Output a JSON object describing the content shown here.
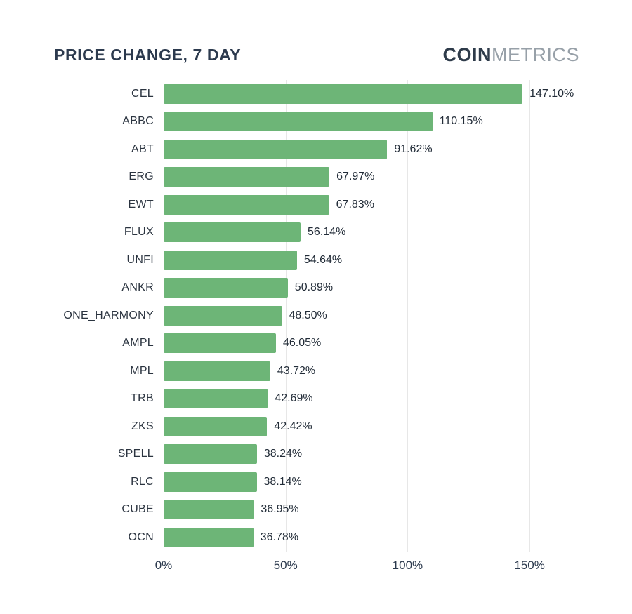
{
  "header": {
    "title": "PRICE CHANGE, 7 DAY",
    "logo_primary": "COIN",
    "logo_secondary": "METRICS"
  },
  "chart_data": {
    "type": "bar",
    "orientation": "horizontal",
    "title": "PRICE CHANGE, 7 DAY",
    "categories": [
      "CEL",
      "ABBC",
      "ABT",
      "ERG",
      "EWT",
      "FLUX",
      "UNFI",
      "ANKR",
      "ONE_HARMONY",
      "AMPL",
      "MPL",
      "TRB",
      "ZKS",
      "SPELL",
      "RLC",
      "CUBE",
      "OCN"
    ],
    "values": [
      147.1,
      110.15,
      91.62,
      67.97,
      67.83,
      56.14,
      54.64,
      50.89,
      48.5,
      46.05,
      43.72,
      42.69,
      42.42,
      38.24,
      38.14,
      36.95,
      36.78
    ],
    "value_labels": [
      "147.10%",
      "110.15%",
      "91.62%",
      "67.97%",
      "67.83%",
      "56.14%",
      "54.64%",
      "50.89%",
      "48.50%",
      "46.05%",
      "43.72%",
      "42.69%",
      "42.42%",
      "38.24%",
      "38.14%",
      "36.95%",
      "36.78%"
    ],
    "xlabel": "",
    "ylabel": "",
    "xlim": [
      0,
      175
    ],
    "ticks": [
      {
        "value": 0,
        "label": "0%"
      },
      {
        "value": 50,
        "label": "50%"
      },
      {
        "value": 100,
        "label": "100%"
      },
      {
        "value": 150,
        "label": "150%"
      }
    ],
    "grid": "vertical",
    "legend": "none"
  },
  "colors": {
    "bar": "#6db577",
    "grid": "#e7e7e7",
    "title": "#2c3a4e",
    "logo_primary": "#2e3b4a",
    "logo_secondary": "#97a0a8",
    "value_text": "#222c38",
    "border": "#cccccc"
  }
}
